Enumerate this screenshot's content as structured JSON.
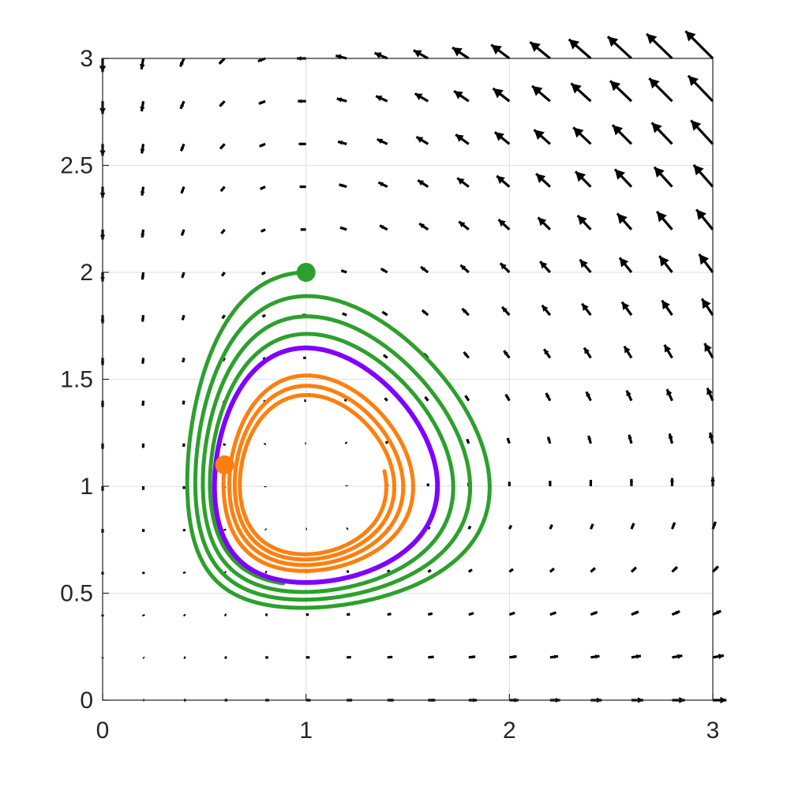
{
  "chart_data": {
    "type": "quiver",
    "title": "",
    "xlabel": "",
    "ylabel": "",
    "xlim": [
      0,
      3
    ],
    "ylim": [
      0,
      3
    ],
    "grid": true,
    "xticks": [
      0,
      1,
      2,
      3
    ],
    "xtick_labels": [
      "0",
      "1",
      "2",
      "3"
    ],
    "yticks": [
      0,
      0.5,
      1,
      1.5,
      2,
      2.5,
      3
    ],
    "ytick_labels": [
      "0",
      "0.5",
      "1",
      "1.5",
      "2",
      "2.5",
      "3"
    ],
    "vector_field": {
      "x": [
        0,
        0.2,
        0.4,
        0.6,
        0.8,
        1.0,
        1.2,
        1.4,
        1.6,
        1.8,
        2.0,
        2.2,
        2.4,
        2.6,
        2.8,
        3.0
      ],
      "y": [
        0,
        0.2,
        0.4,
        0.6,
        0.8,
        1.0,
        1.2,
        1.4,
        1.6,
        1.8,
        2.0,
        2.2,
        2.4,
        2.6,
        2.8,
        3.0
      ],
      "field": "dx/dt = x(1 - y), dy/dt = y(x - 1)",
      "color": "#000000"
    },
    "series": [
      {
        "color": "#2ca02c",
        "start": [
          1.0,
          2.0
        ],
        "marker_at_start": true
      },
      {
        "color": "#ff7f0e",
        "start": [
          0.6,
          1.1
        ],
        "marker_at_start": true
      },
      {
        "color": "#8000ff",
        "start": [
          0.55,
          1.0
        ],
        "marker_at_start": false
      }
    ]
  }
}
